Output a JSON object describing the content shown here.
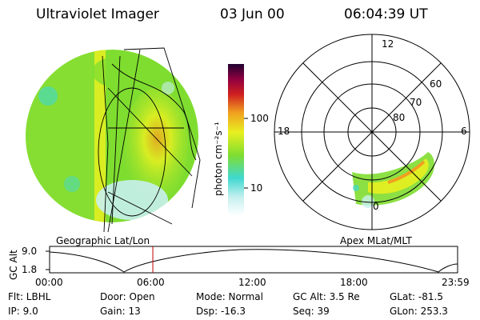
{
  "header": {
    "instrument": "Ultraviolet Imager",
    "date": "03 Jun 00",
    "time": "06:04:39 UT"
  },
  "colorbar": {
    "unit_label": "photon cm⁻²s⁻¹",
    "ticks": [
      "100",
      "10"
    ],
    "scale": "log"
  },
  "left_panel": {
    "caption": "Geographic Lat/Lon"
  },
  "right_panel": {
    "caption": "Apex MLat/MLT",
    "mlt_labels": [
      "12",
      "18",
      "6",
      "0"
    ],
    "mlat_labels": [
      "60",
      "70",
      "80"
    ]
  },
  "altitude_plot": {
    "ylabel": "GC Alt",
    "yticks": [
      "9.0",
      "1.8"
    ],
    "xticks": [
      "00:00",
      "06:00",
      "12:00",
      "18:00",
      "23:59"
    ],
    "current_time_fraction": 0.253
  },
  "info": {
    "flt": "Flt: LBHL",
    "ip": "IP:  9.0",
    "door": "Door: Open",
    "gain": "Gain: 13",
    "mode": "Mode: Normal",
    "dsp": "Dsp:  -16.3",
    "gcalt": "GC Alt: 3.5 Re",
    "seq": "Seq: 39",
    "glat": "GLat: -81.5",
    "glon": "GLon: 253.3"
  },
  "colors": {
    "green": "#7fdd30",
    "yellow": "#e8f020",
    "cyan": "#40d8d0",
    "orange": "#f0a020",
    "cursor": "#c00000"
  }
}
